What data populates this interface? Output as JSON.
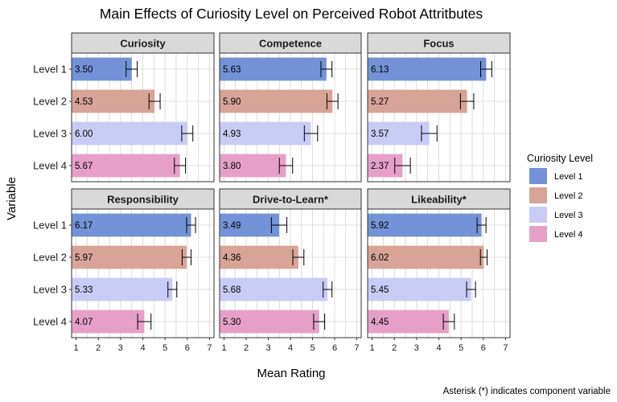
{
  "chart_data": {
    "type": "bar",
    "orientation": "horizontal",
    "title": "Main Effects of Curiosity Level on Perceived Robot Attritbutes",
    "xlabel": "Mean Rating",
    "ylabel": "Variable",
    "xlim": [
      0.8,
      7.2
    ],
    "xticks": [
      1,
      2,
      3,
      4,
      5,
      6,
      7
    ],
    "categories": [
      "Level 1",
      "Level 2",
      "Level 3",
      "Level 4"
    ],
    "legend": {
      "title": "Curiosity Level",
      "position": "right",
      "items": [
        {
          "label": "Level 1",
          "color": "#7393d6"
        },
        {
          "label": "Level 2",
          "color": "#d7a497"
        },
        {
          "label": "Level 3",
          "color": "#c8ccf5"
        },
        {
          "label": "Level 4",
          "color": "#e6a0c8"
        }
      ]
    },
    "grid": true,
    "caption": "Asterisk (*) indicates component variable",
    "panels": [
      {
        "title": "Curiosity",
        "values": [
          3.5,
          4.53,
          6.0,
          5.67
        ],
        "labels": [
          "3.50",
          "4.53",
          "6.00",
          "5.67"
        ],
        "errors": [
          0.25,
          0.25,
          0.25,
          0.25
        ]
      },
      {
        "title": "Competence",
        "values": [
          5.63,
          5.9,
          4.93,
          3.8
        ],
        "labels": [
          "5.63",
          "5.90",
          "4.93",
          "3.80"
        ],
        "errors": [
          0.25,
          0.25,
          0.3,
          0.3
        ]
      },
      {
        "title": "Focus",
        "values": [
          6.13,
          5.27,
          3.57,
          2.37
        ],
        "labels": [
          "6.13",
          "5.27",
          "3.57",
          "2.37"
        ],
        "errors": [
          0.25,
          0.3,
          0.35,
          0.35
        ]
      },
      {
        "title": "Responsibility",
        "values": [
          6.17,
          5.97,
          5.33,
          4.07
        ],
        "labels": [
          "6.17",
          "5.97",
          "5.33",
          "4.07"
        ],
        "errors": [
          0.2,
          0.2,
          0.2,
          0.3
        ]
      },
      {
        "title": "Drive-to-Learn*",
        "values": [
          3.49,
          4.36,
          5.68,
          5.3
        ],
        "labels": [
          "3.49",
          "4.36",
          "5.68",
          "5.30"
        ],
        "errors": [
          0.35,
          0.25,
          0.2,
          0.25
        ]
      },
      {
        "title": "Likeability*",
        "values": [
          5.92,
          6.02,
          5.45,
          4.45
        ],
        "labels": [
          "5.92",
          "6.02",
          "5.45",
          "4.45"
        ],
        "errors": [
          0.2,
          0.15,
          0.2,
          0.25
        ]
      }
    ]
  }
}
